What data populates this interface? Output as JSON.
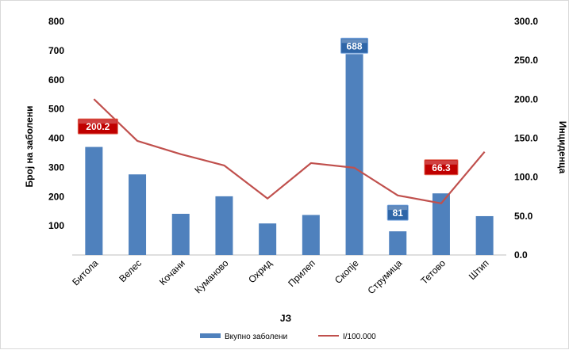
{
  "chart_data": {
    "type": "bar+line",
    "categories": [
      "Битола",
      "Велес",
      "Кочани",
      "Куманово",
      "Охрид",
      "Прилеп",
      "Скопје",
      "Струмица",
      "Тетово",
      "Штип"
    ],
    "series": [
      {
        "name": "Вкупно заболени",
        "type": "bar",
        "axis": "left",
        "color": "#4f81bd",
        "values": [
          370,
          276,
          141,
          201,
          108,
          137,
          688,
          81,
          211,
          133
        ]
      },
      {
        "name": "I/100.000",
        "type": "line",
        "axis": "right",
        "color": "#c0504d",
        "values": [
          200.2,
          146.5,
          129.5,
          115.0,
          72.5,
          118.0,
          112.0,
          76.5,
          66.3,
          132.5
        ]
      }
    ],
    "data_labels": [
      {
        "series": "I/100.000",
        "category": "Битола",
        "text": "200.2",
        "style": "red"
      },
      {
        "series": "Вкупно заболени",
        "category": "Скопје",
        "text": "688",
        "style": "blue"
      },
      {
        "series": "Вкупно заболени",
        "category": "Струмица",
        "text": "81",
        "style": "blue"
      },
      {
        "series": "I/100.000",
        "category": "Тетово",
        "text": "66.3",
        "style": "red"
      }
    ],
    "xlabel": "ЈЗ",
    "ylabel": "Број на заболени",
    "y2label": "Инциденца",
    "ylim": [
      0,
      800
    ],
    "y2lim": [
      0,
      300
    ],
    "yticks": [
      "100",
      "200",
      "300",
      "400",
      "500",
      "600",
      "700",
      "800"
    ],
    "y2ticks": [
      "0.0",
      "50.0",
      "100.0",
      "150.0",
      "200.0",
      "250.0",
      "300.0"
    ],
    "grid": false,
    "legend_position": "bottom"
  }
}
